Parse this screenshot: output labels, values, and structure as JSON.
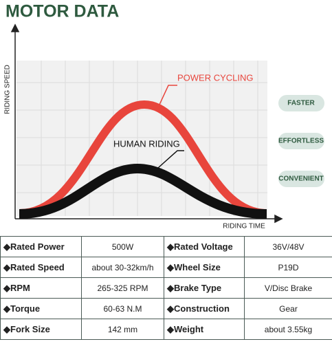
{
  "header": {
    "title": "MOTOR DATA"
  },
  "graph": {
    "y_axis_label": "RIDING SPEED",
    "x_axis_label": "RIDING TIME",
    "curves": [
      "POWER CYCLING",
      "HUMAN RIDING"
    ]
  },
  "badges": [
    "FASTER",
    "EFFORTLESS",
    "CONVENIENT"
  ],
  "table": {
    "rows": [
      [
        "◆Rated Power",
        "500W",
        "◆Rated Voltage",
        "36V/48V"
      ],
      [
        "◆Rated Speed",
        "about 30-32km/h",
        "◆Wheel Size",
        "P19D"
      ],
      [
        "◆RPM",
        "265-325 RPM",
        "◆Brake Type",
        "V/Disc Brake"
      ],
      [
        "◆Torque",
        "60-63 N.M",
        "◆Construction",
        "Gear"
      ],
      [
        "◆Fork Size",
        "142 mm",
        "◆Weight",
        "about 3.55kg"
      ]
    ]
  }
}
